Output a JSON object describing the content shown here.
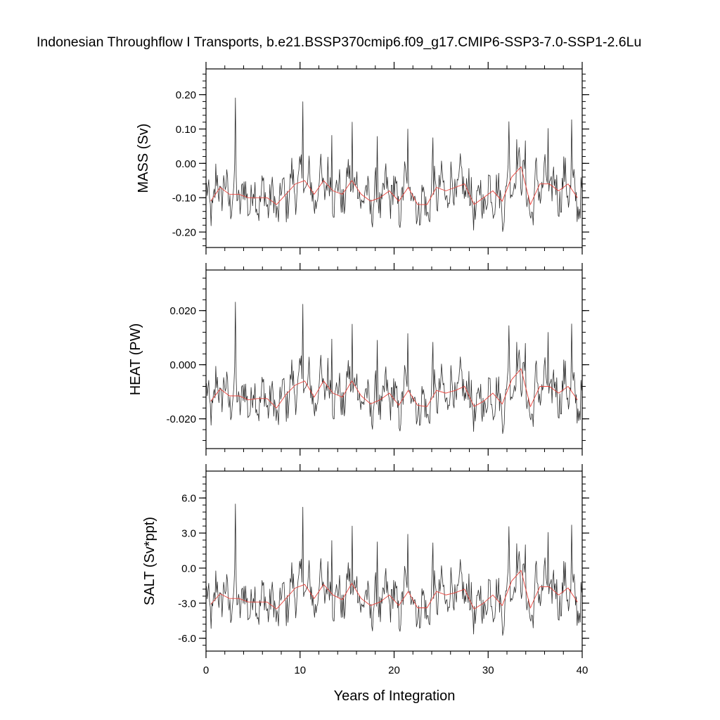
{
  "title": "Indonesian Throughflow I Transports, b.e21.BSSP370cmip6.f09_g17.CMIP6-SSP3-7.0-SSP1-2.6Lu",
  "chart_data": [
    {
      "type": "line",
      "ylabel": "MASS (Sv)",
      "xlim": [
        0,
        40
      ],
      "ylim": [
        -0.245,
        0.275
      ],
      "yticks": [
        -0.2,
        -0.1,
        0.0,
        0.1,
        0.2
      ],
      "ytick_labels": [
        "-0.20",
        "-0.10",
        "0.00",
        "0.10",
        "0.20"
      ],
      "annual_x": [
        0.5,
        1.5,
        2.5,
        3.5,
        4.5,
        5.5,
        6.5,
        7.5,
        8.5,
        9.5,
        10.5,
        11.5,
        12.5,
        13.5,
        14.5,
        15.5,
        16.5,
        17.5,
        18.5,
        19.5,
        20.5,
        21.5,
        22.5,
        23.5,
        24.5,
        25.5,
        26.5,
        27.5,
        28.5,
        29.5,
        30.5,
        31.5,
        32.5,
        33.5,
        34.5,
        35.5,
        36.5,
        37.5,
        38.5,
        39.5
      ],
      "annual_values": [
        -0.11,
        -0.07,
        -0.09,
        -0.09,
        -0.1,
        -0.1,
        -0.1,
        -0.12,
        -0.09,
        -0.06,
        -0.05,
        -0.09,
        -0.05,
        -0.08,
        -0.09,
        -0.05,
        -0.09,
        -0.11,
        -0.1,
        -0.08,
        -0.11,
        -0.07,
        -0.12,
        -0.12,
        -0.07,
        -0.08,
        -0.07,
        -0.06,
        -0.12,
        -0.1,
        -0.08,
        -0.11,
        -0.04,
        -0.01,
        -0.12,
        -0.06,
        -0.06,
        -0.08,
        -0.06,
        -0.1
      ]
    },
    {
      "type": "line",
      "ylabel": "HEAT (PW)",
      "xlim": [
        0,
        40
      ],
      "ylim": [
        -0.031,
        0.035
      ],
      "yticks": [
        -0.02,
        0.0,
        0.02
      ],
      "ytick_labels": [
        "-0.020",
        "0.000",
        "0.020"
      ],
      "annual_x": [
        0.5,
        1.5,
        2.5,
        3.5,
        4.5,
        5.5,
        6.5,
        7.5,
        8.5,
        9.5,
        10.5,
        11.5,
        12.5,
        13.5,
        14.5,
        15.5,
        16.5,
        17.5,
        18.5,
        19.5,
        20.5,
        21.5,
        22.5,
        23.5,
        24.5,
        25.5,
        26.5,
        27.5,
        28.5,
        29.5,
        30.5,
        31.5,
        32.5,
        33.5,
        34.5,
        35.5,
        36.5,
        37.5,
        38.5,
        39.5
      ],
      "annual_values": [
        -0.0135,
        -0.009,
        -0.0115,
        -0.0115,
        -0.013,
        -0.0125,
        -0.0125,
        -0.016,
        -0.011,
        -0.0075,
        -0.006,
        -0.012,
        -0.006,
        -0.0105,
        -0.012,
        -0.006,
        -0.0115,
        -0.0145,
        -0.013,
        -0.0105,
        -0.015,
        -0.0095,
        -0.015,
        -0.0155,
        -0.0095,
        -0.0105,
        -0.0095,
        -0.008,
        -0.0155,
        -0.0135,
        -0.0105,
        -0.0145,
        -0.0055,
        -0.0015,
        -0.0155,
        -0.008,
        -0.008,
        -0.0105,
        -0.008,
        -0.013
      ]
    },
    {
      "type": "line",
      "ylabel": "SALT (Sv*ppt)",
      "xlim": [
        0,
        40
      ],
      "ylim": [
        -7.1,
        8.3
      ],
      "yticks": [
        -6,
        -3,
        0,
        3,
        6
      ],
      "ytick_labels": [
        "-6.0",
        "-3.0",
        "0.0",
        "3.0",
        "6.0"
      ],
      "annual_x": [
        0.5,
        1.5,
        2.5,
        3.5,
        4.5,
        5.5,
        6.5,
        7.5,
        8.5,
        9.5,
        10.5,
        11.5,
        12.5,
        13.5,
        14.5,
        15.5,
        16.5,
        17.5,
        18.5,
        19.5,
        20.5,
        21.5,
        22.5,
        23.5,
        24.5,
        25.5,
        26.5,
        27.5,
        28.5,
        29.5,
        30.5,
        31.5,
        32.5,
        33.5,
        34.5,
        35.5,
        36.5,
        37.5,
        38.5,
        39.5
      ],
      "annual_values": [
        -3.1,
        -2.2,
        -2.6,
        -2.6,
        -2.9,
        -2.9,
        -2.9,
        -3.5,
        -2.6,
        -1.7,
        -1.4,
        -2.6,
        -1.4,
        -2.3,
        -2.7,
        -1.3,
        -2.6,
        -3.2,
        -2.9,
        -2.3,
        -3.2,
        -2.0,
        -3.4,
        -3.4,
        -2.0,
        -2.3,
        -2.1,
        -1.8,
        -3.5,
        -3.0,
        -2.3,
        -3.2,
        -1.1,
        -0.2,
        -3.4,
        -1.6,
        -1.6,
        -2.3,
        -1.7,
        -2.9
      ]
    }
  ],
  "x_axis": {
    "label": "Years of Integration",
    "xlim": [
      0,
      40
    ],
    "ticks": [
      0,
      10,
      20,
      30,
      40
    ],
    "tick_labels": [
      "0",
      "10",
      "20",
      "30",
      "40"
    ]
  },
  "colors": {
    "monthly_line": "#2b2b2b",
    "annual_line": "#e8413a",
    "axes": "#000000"
  }
}
